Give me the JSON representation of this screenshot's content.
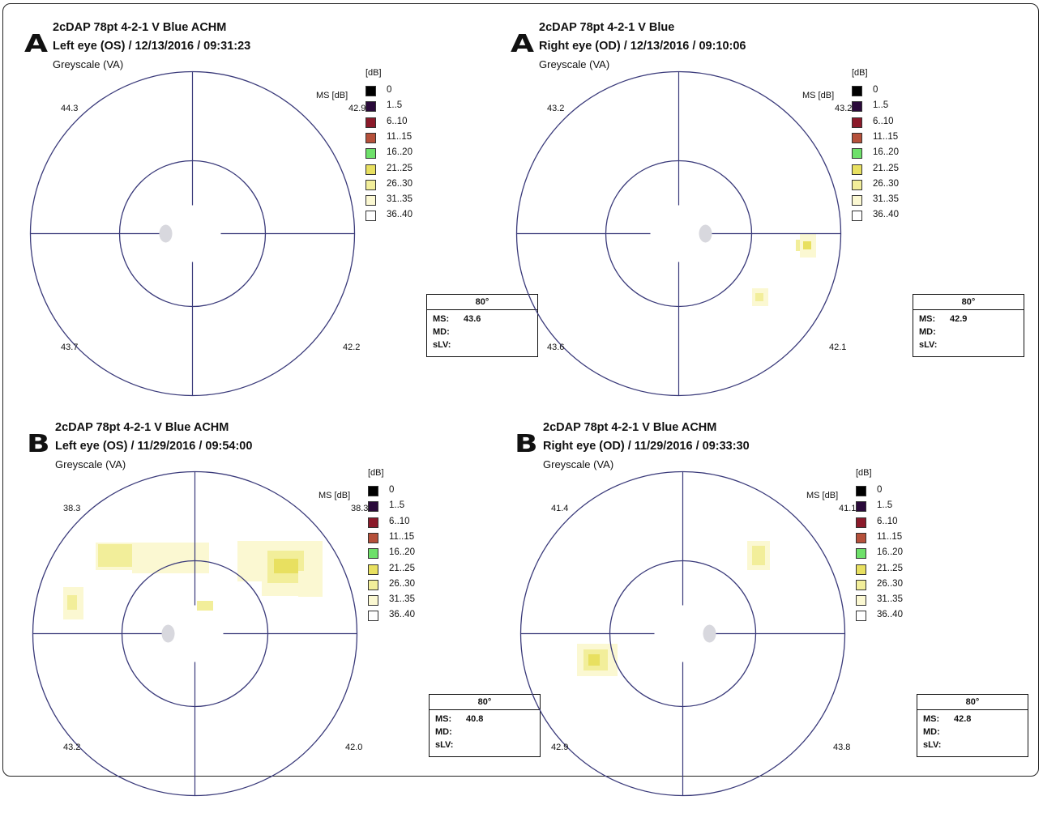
{
  "legend": {
    "unit": "[dB]",
    "items": [
      {
        "label": "0",
        "color": "#000000"
      },
      {
        "label": "1..5",
        "color": "#2a0a3a"
      },
      {
        "label": "6..10",
        "color": "#8b1a2a"
      },
      {
        "label": "11..15",
        "color": "#b5503a"
      },
      {
        "label": "16..20",
        "color": "#6ee06a"
      },
      {
        "label": "21..25",
        "color": "#e8e060"
      },
      {
        "label": "26..30",
        "color": "#f2ee9a"
      },
      {
        "label": "31..35",
        "color": "#fbf8d2"
      },
      {
        "label": "36..40",
        "color": "#ffffff"
      }
    ]
  },
  "ms_db_label": "MS [dB]",
  "stat_header": "80°",
  "stat_labels": {
    "ms": "MS:",
    "md": "MD:",
    "slv": "sLV:"
  },
  "colors": {
    "grid": "#3a3a7a",
    "blindspot": "#d8d8de",
    "shade_light": "#fbf8d2",
    "shade_mid": "#f2ee9a",
    "shade_dark": "#e8e060"
  },
  "panels": [
    {
      "letter": "A",
      "title1": "2cDAP 78pt 4-2-1 V Blue ACHM",
      "title2": "Left eye (OS) / 12/13/2016 / 09:31:23",
      "subtitle": "Greyscale (VA)",
      "quadrants": {
        "tl": "44.3",
        "tr": "42.9",
        "bl": "43.7",
        "br": "42.2"
      },
      "ms": "43.6",
      "md": "",
      "slv": ""
    },
    {
      "letter": "A",
      "title1": "2cDAP 78pt 4-2-1 V Blue",
      "title2": "Right eye (OD) / 12/13/2016 / 09:10:06",
      "subtitle": "Greyscale (VA)",
      "quadrants": {
        "tl": "43.2",
        "tr": "43.2",
        "bl": "43.6",
        "br": "42.1"
      },
      "ms": "42.9",
      "md": "",
      "slv": ""
    },
    {
      "letter": "B",
      "title1": "2cDAP 78pt 4-2-1 V Blue ACHM",
      "title2": "Left eye (OS) / 11/29/2016 / 09:54:00",
      "subtitle": "Greyscale (VA)",
      "quadrants": {
        "tl": "38.3",
        "tr": "38.3",
        "bl": "43.2",
        "br": "42.0"
      },
      "ms": "40.8",
      "md": "",
      "slv": ""
    },
    {
      "letter": "B",
      "title1": "2cDAP 78pt 4-2-1 V Blue ACHM",
      "title2": "Right eye (OD) / 11/29/2016 / 09:33:30",
      "subtitle": "Greyscale (VA)",
      "quadrants": {
        "tl": "41.4",
        "tr": "41.1",
        "bl": "42.9",
        "br": "43.8"
      },
      "ms": "42.8",
      "md": "",
      "slv": ""
    }
  ]
}
